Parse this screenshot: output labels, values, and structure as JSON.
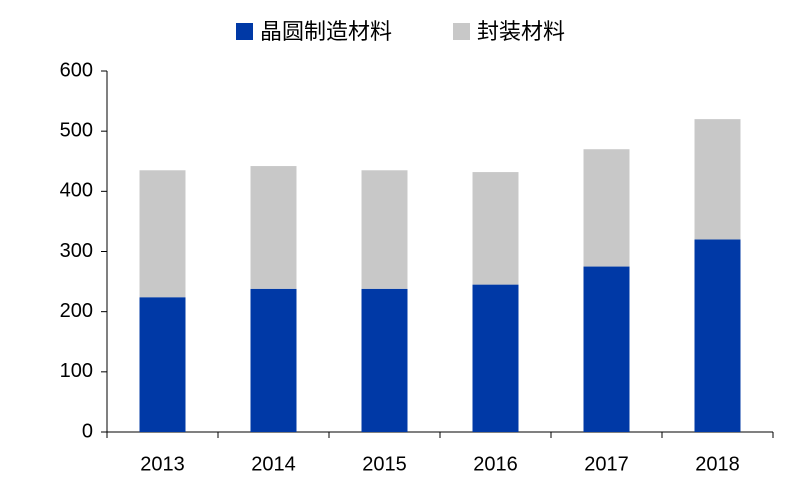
{
  "chart_data": {
    "type": "stacked_bar",
    "categories": [
      "2013",
      "2014",
      "2015",
      "2016",
      "2017",
      "2018"
    ],
    "series": [
      {
        "name": "晶圆制造材料",
        "color": "#0039a6",
        "values": [
          224,
          238,
          238,
          245,
          275,
          320
        ]
      },
      {
        "name": "封装材料",
        "color": "#c8c8c8",
        "values": [
          211,
          204,
          197,
          187,
          195,
          200
        ]
      }
    ],
    "ylim": [
      0,
      600
    ],
    "yticks": [
      0,
      100,
      200,
      300,
      400,
      500,
      600
    ],
    "grid": false
  }
}
